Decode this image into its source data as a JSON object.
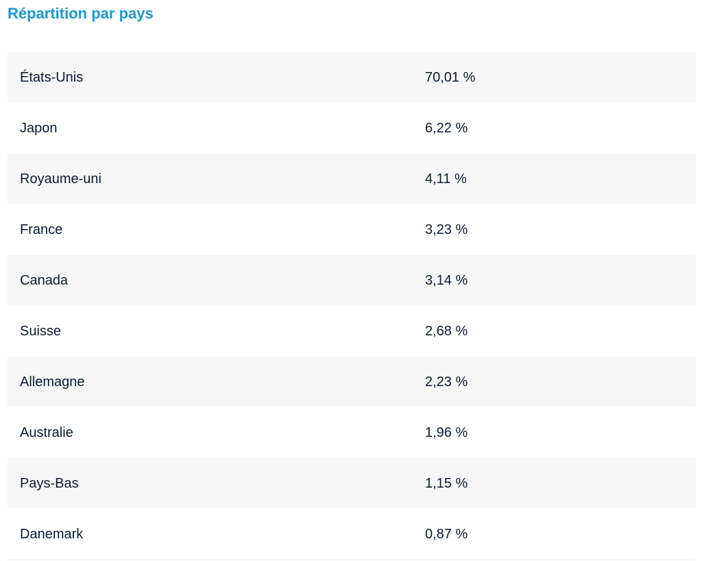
{
  "section": {
    "title": "Répartition par pays"
  },
  "table": {
    "rows": [
      {
        "country": "États-Unis",
        "percent": "70,01 %"
      },
      {
        "country": "Japon",
        "percent": "6,22 %"
      },
      {
        "country": "Royaume-uni",
        "percent": "4,11 %"
      },
      {
        "country": "France",
        "percent": "3,23 %"
      },
      {
        "country": "Canada",
        "percent": "3,14 %"
      },
      {
        "country": "Suisse",
        "percent": "2,68 %"
      },
      {
        "country": "Allemagne",
        "percent": "2,23 %"
      },
      {
        "country": "Australie",
        "percent": "1,96 %"
      },
      {
        "country": "Pays-Bas",
        "percent": "1,15 %"
      },
      {
        "country": "Danemark",
        "percent": "0,87 %"
      }
    ]
  },
  "colors": {
    "title": "#1a98d5",
    "text": "#0b1a33",
    "row_shade": "#f7f7f7"
  }
}
